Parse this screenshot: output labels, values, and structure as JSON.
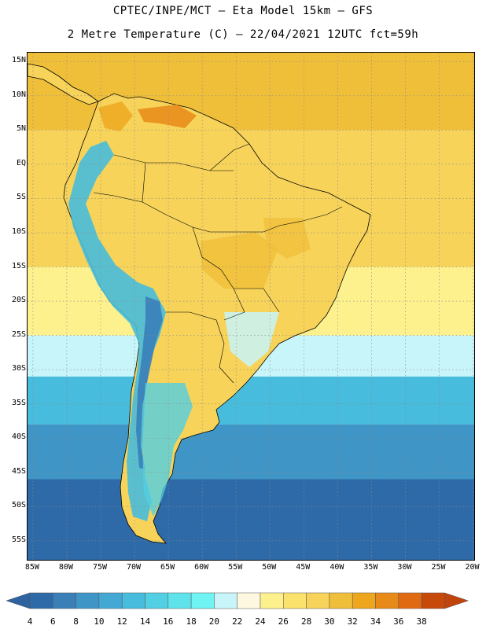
{
  "title_line1": "CPTEC/INPE/MCT –  Eta Model 15km – GFS",
  "title_line2": "2 Metre Temperature (C) – 22/04/2021 12UTC fct=59h",
  "map": {
    "lat_labels": [
      "15N",
      "10N",
      "5N",
      "EQ",
      "5S",
      "10S",
      "15S",
      "20S",
      "25S",
      "30S",
      "35S",
      "40S",
      "45S",
      "50S",
      "55S"
    ],
    "lat_values": [
      15,
      10,
      5,
      0,
      -5,
      -10,
      -15,
      -20,
      -25,
      -30,
      -35,
      -40,
      -45,
      -50,
      -55
    ],
    "lon_labels": [
      "85W",
      "80W",
      "75W",
      "70W",
      "65W",
      "60W",
      "55W",
      "50W",
      "45W",
      "40W",
      "35W",
      "30W",
      "25W",
      "20W"
    ],
    "lon_values": [
      -85,
      -80,
      -75,
      -70,
      -65,
      -60,
      -55,
      -50,
      -45,
      -40,
      -35,
      -30,
      -25,
      -20
    ],
    "lat_range": [
      -58,
      16.3
    ],
    "lon_range": [
      -85.8,
      -19.6
    ],
    "gridlines": true
  },
  "colorbar": {
    "ticks": [
      "4",
      "6",
      "8",
      "10",
      "12",
      "14",
      "16",
      "18",
      "20",
      "22",
      "24",
      "26",
      "28",
      "30",
      "32",
      "34",
      "36",
      "38"
    ],
    "colors": [
      "#2f6aa8",
      "#3a7fb8",
      "#3f95c5",
      "#43a8d3",
      "#47bcdc",
      "#52cfe2",
      "#5ee3ea",
      "#70f3f3",
      "#c8f5f9",
      "#fff8e0",
      "#fdf18e",
      "#fbe26c",
      "#f7d35a",
      "#f0bf3a",
      "#eda61d",
      "#e88a17",
      "#e06a12",
      "#c84a0a"
    ],
    "low_color": "#2e62a0",
    "high_color": "#c0440c"
  },
  "colors": {
    "land_outline": "#000000",
    "grid": "#888888",
    "ocean_south_far": "#2f6aa8",
    "ocean_south": "#3f95c5",
    "ocean_mid": "#47bcdc",
    "ocean_subtropic": "#c8f5f9",
    "ocean_warm": "#fdf18e",
    "ocean_tropic": "#f7d35a",
    "ocean_equator": "#f0bf3a"
  }
}
